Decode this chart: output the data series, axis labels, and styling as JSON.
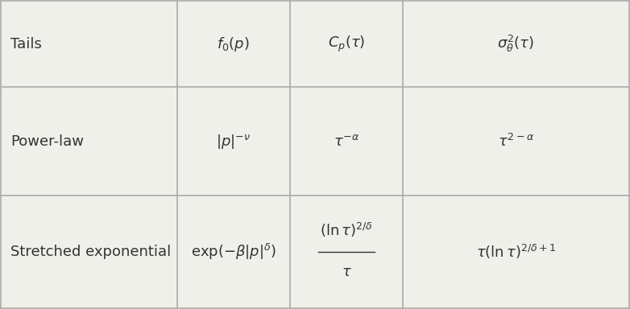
{
  "bg_color": "#f0f0eb",
  "table_bg": "#ffffff",
  "border_color": "#aaaaaa",
  "text_color": "#333333",
  "fig_width": 7.82,
  "fig_height": 3.84,
  "cols": [
    0.0,
    0.28,
    0.46,
    0.64,
    1.0
  ],
  "rows": [
    0.0,
    0.365,
    0.72,
    1.0
  ],
  "fontsize": 13
}
